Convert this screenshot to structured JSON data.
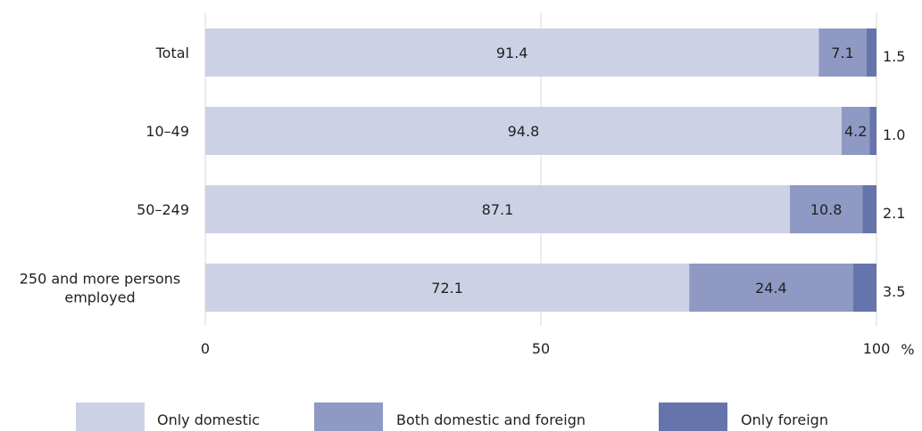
{
  "chart_data": {
    "type": "bar",
    "orientation": "horizontal",
    "stacked": true,
    "categories": [
      "Total",
      "10–49",
      "50–249",
      "250 and more persons employed"
    ],
    "series": [
      {
        "name": "Only domestic",
        "color": "#cdd1e5",
        "values": [
          91.4,
          94.8,
          87.1,
          72.1
        ]
      },
      {
        "name": "Both domestic and foreign",
        "color": "#8e99c4",
        "values": [
          7.1,
          4.2,
          10.8,
          24.4
        ]
      },
      {
        "name": "Only foreign",
        "color": "#6575ac",
        "values": [
          1.5,
          1.0,
          2.1,
          3.5
        ]
      }
    ],
    "xlim": [
      0,
      100
    ],
    "xticks": [
      0,
      50,
      100
    ],
    "xunit": "%",
    "grid": true,
    "legend": "bottom"
  }
}
